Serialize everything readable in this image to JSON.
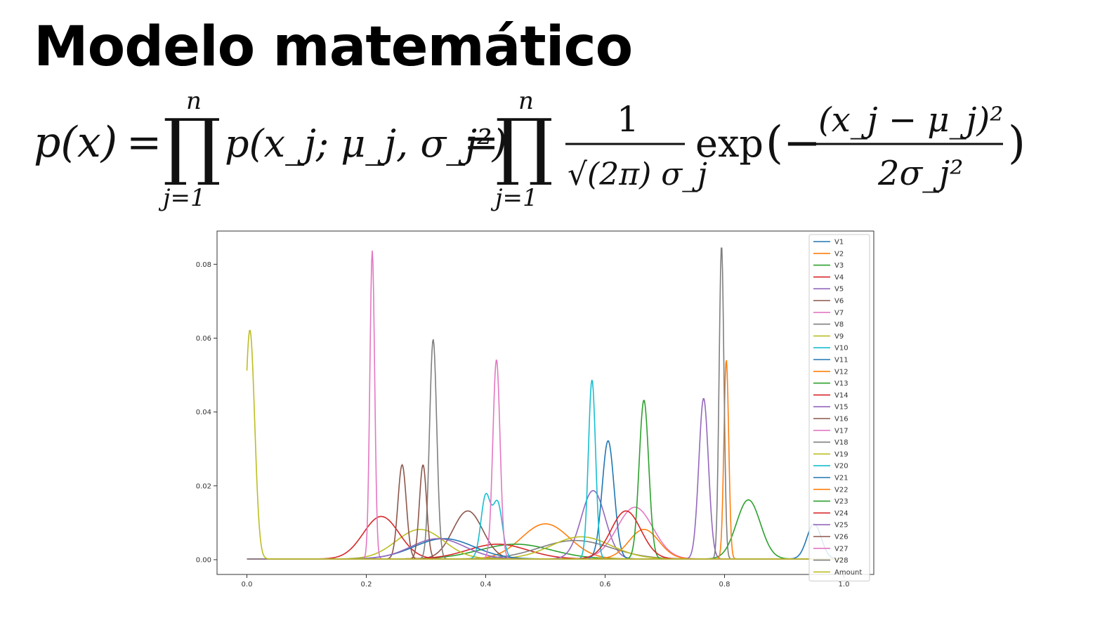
{
  "page": {
    "title": "Modelo matemático"
  },
  "formula": {
    "lhs": "p(x)",
    "eq": "=",
    "prod_upper": "n",
    "prod_lower": "j=1",
    "term1": "p(x_j; μ_j, σ_j²)",
    "numerator": "1",
    "denominator": "√(2π) σ_j",
    "exp": "exp",
    "exp_numerator": "(x_j − μ_j)²",
    "exp_denominator": "2σ_j²"
  },
  "chart_data": {
    "type": "line",
    "xlim": [
      -0.05,
      1.05
    ],
    "ylim": [
      -0.004,
      0.089
    ],
    "xticks": [
      0.0,
      0.2,
      0.4,
      0.6,
      0.8,
      1.0
    ],
    "xtick_labels": [
      "0.0",
      "0.2",
      "0.4",
      "0.6",
      "0.8",
      "1.0"
    ],
    "yticks": [
      0.0,
      0.02,
      0.04,
      0.06,
      0.08
    ],
    "ytick_labels": [
      "0.00",
      "0.02",
      "0.04",
      "0.06",
      "0.08"
    ],
    "legend_position": "right",
    "grid": false,
    "series": [
      {
        "name": "V1",
        "color": "#1f77b4",
        "peaks": [
          {
            "mu": 0.95,
            "sigma": 0.012,
            "amp": 0.0095
          }
        ]
      },
      {
        "name": "V2",
        "color": "#ff7f0e",
        "peaks": [
          {
            "mu": 0.5,
            "sigma": 0.04,
            "amp": 0.0095
          }
        ]
      },
      {
        "name": "V3",
        "color": "#2ca02c",
        "peaks": [
          {
            "mu": 0.45,
            "sigma": 0.06,
            "amp": 0.004
          }
        ]
      },
      {
        "name": "V4",
        "color": "#d62728",
        "peaks": [
          {
            "mu": 0.42,
            "sigma": 0.05,
            "amp": 0.004
          }
        ]
      },
      {
        "name": "V5",
        "color": "#9467bd",
        "peaks": [
          {
            "mu": 0.58,
            "sigma": 0.02,
            "amp": 0.0185
          }
        ]
      },
      {
        "name": "V6",
        "color": "#8c564b",
        "peaks": [
          {
            "mu": 0.37,
            "sigma": 0.025,
            "amp": 0.013
          }
        ]
      },
      {
        "name": "V7",
        "color": "#e377c2",
        "peaks": [
          {
            "mu": 0.65,
            "sigma": 0.03,
            "amp": 0.014
          }
        ]
      },
      {
        "name": "V8",
        "color": "#7f7f7f",
        "peaks": [
          {
            "mu": 0.55,
            "sigma": 0.06,
            "amp": 0.005
          }
        ]
      },
      {
        "name": "V9",
        "color": "#bcbd22",
        "peaks": [
          {
            "mu": 0.29,
            "sigma": 0.04,
            "amp": 0.008
          }
        ]
      },
      {
        "name": "V10",
        "color": "#17becf",
        "peaks": [
          {
            "mu": 0.4,
            "sigma": 0.008,
            "amp": 0.017
          },
          {
            "mu": 0.42,
            "sigma": 0.008,
            "amp": 0.015
          }
        ]
      },
      {
        "name": "V11",
        "color": "#1f77b4",
        "peaks": [
          {
            "mu": 0.605,
            "sigma": 0.01,
            "amp": 0.032
          }
        ]
      },
      {
        "name": "V12",
        "color": "#ff7f0e",
        "peaks": [
          {
            "mu": 0.665,
            "sigma": 0.025,
            "amp": 0.008
          }
        ]
      },
      {
        "name": "V13",
        "color": "#2ca02c",
        "peaks": [
          {
            "mu": 0.84,
            "sigma": 0.02,
            "amp": 0.016
          }
        ]
      },
      {
        "name": "V14",
        "color": "#d62728",
        "peaks": [
          {
            "mu": 0.225,
            "sigma": 0.03,
            "amp": 0.0115
          }
        ]
      },
      {
        "name": "V15",
        "color": "#9467bd",
        "peaks": [
          {
            "mu": 0.765,
            "sigma": 0.008,
            "amp": 0.0435
          }
        ]
      },
      {
        "name": "V16",
        "color": "#8c564b",
        "peaks": [
          {
            "mu": 0.26,
            "sigma": 0.007,
            "amp": 0.0255
          }
        ]
      },
      {
        "name": "V17",
        "color": "#e377c2",
        "peaks": [
          {
            "mu": 0.21,
            "sigma": 0.004,
            "amp": 0.0835
          }
        ]
      },
      {
        "name": "V18",
        "color": "#7f7f7f",
        "peaks": [
          {
            "mu": 0.312,
            "sigma": 0.006,
            "amp": 0.0595
          }
        ]
      },
      {
        "name": "V19",
        "color": "#bcbd22",
        "peaks": [
          {
            "mu": 0.56,
            "sigma": 0.05,
            "amp": 0.006
          }
        ]
      },
      {
        "name": "V20",
        "color": "#17becf",
        "peaks": [
          {
            "mu": 0.578,
            "sigma": 0.006,
            "amp": 0.0485
          }
        ]
      },
      {
        "name": "V21",
        "color": "#1f77b4",
        "peaks": [
          {
            "mu": 0.33,
            "sigma": 0.05,
            "amp": 0.0055
          }
        ]
      },
      {
        "name": "V22",
        "color": "#ff7f0e",
        "peaks": [
          {
            "mu": 0.803,
            "sigma": 0.004,
            "amp": 0.054
          }
        ]
      },
      {
        "name": "V23",
        "color": "#2ca02c",
        "peaks": [
          {
            "mu": 0.665,
            "sigma": 0.008,
            "amp": 0.043
          }
        ]
      },
      {
        "name": "V24",
        "color": "#d62728",
        "peaks": [
          {
            "mu": 0.635,
            "sigma": 0.025,
            "amp": 0.013
          }
        ]
      },
      {
        "name": "V25",
        "color": "#9467bd",
        "peaks": [
          {
            "mu": 0.32,
            "sigma": 0.045,
            "amp": 0.0055
          }
        ]
      },
      {
        "name": "V26",
        "color": "#8c564b",
        "peaks": [
          {
            "mu": 0.295,
            "sigma": 0.006,
            "amp": 0.0255
          }
        ]
      },
      {
        "name": "V27",
        "color": "#e377c2",
        "peaks": [
          {
            "mu": 0.418,
            "sigma": 0.006,
            "amp": 0.054
          }
        ]
      },
      {
        "name": "V28",
        "color": "#7f7f7f",
        "peaks": [
          {
            "mu": 0.795,
            "sigma": 0.004,
            "amp": 0.085
          }
        ]
      },
      {
        "name": "Amount",
        "color": "#bcbd22",
        "peaks": [
          {
            "mu": 0.005,
            "sigma": 0.008,
            "amp": 0.062
          }
        ]
      }
    ]
  }
}
